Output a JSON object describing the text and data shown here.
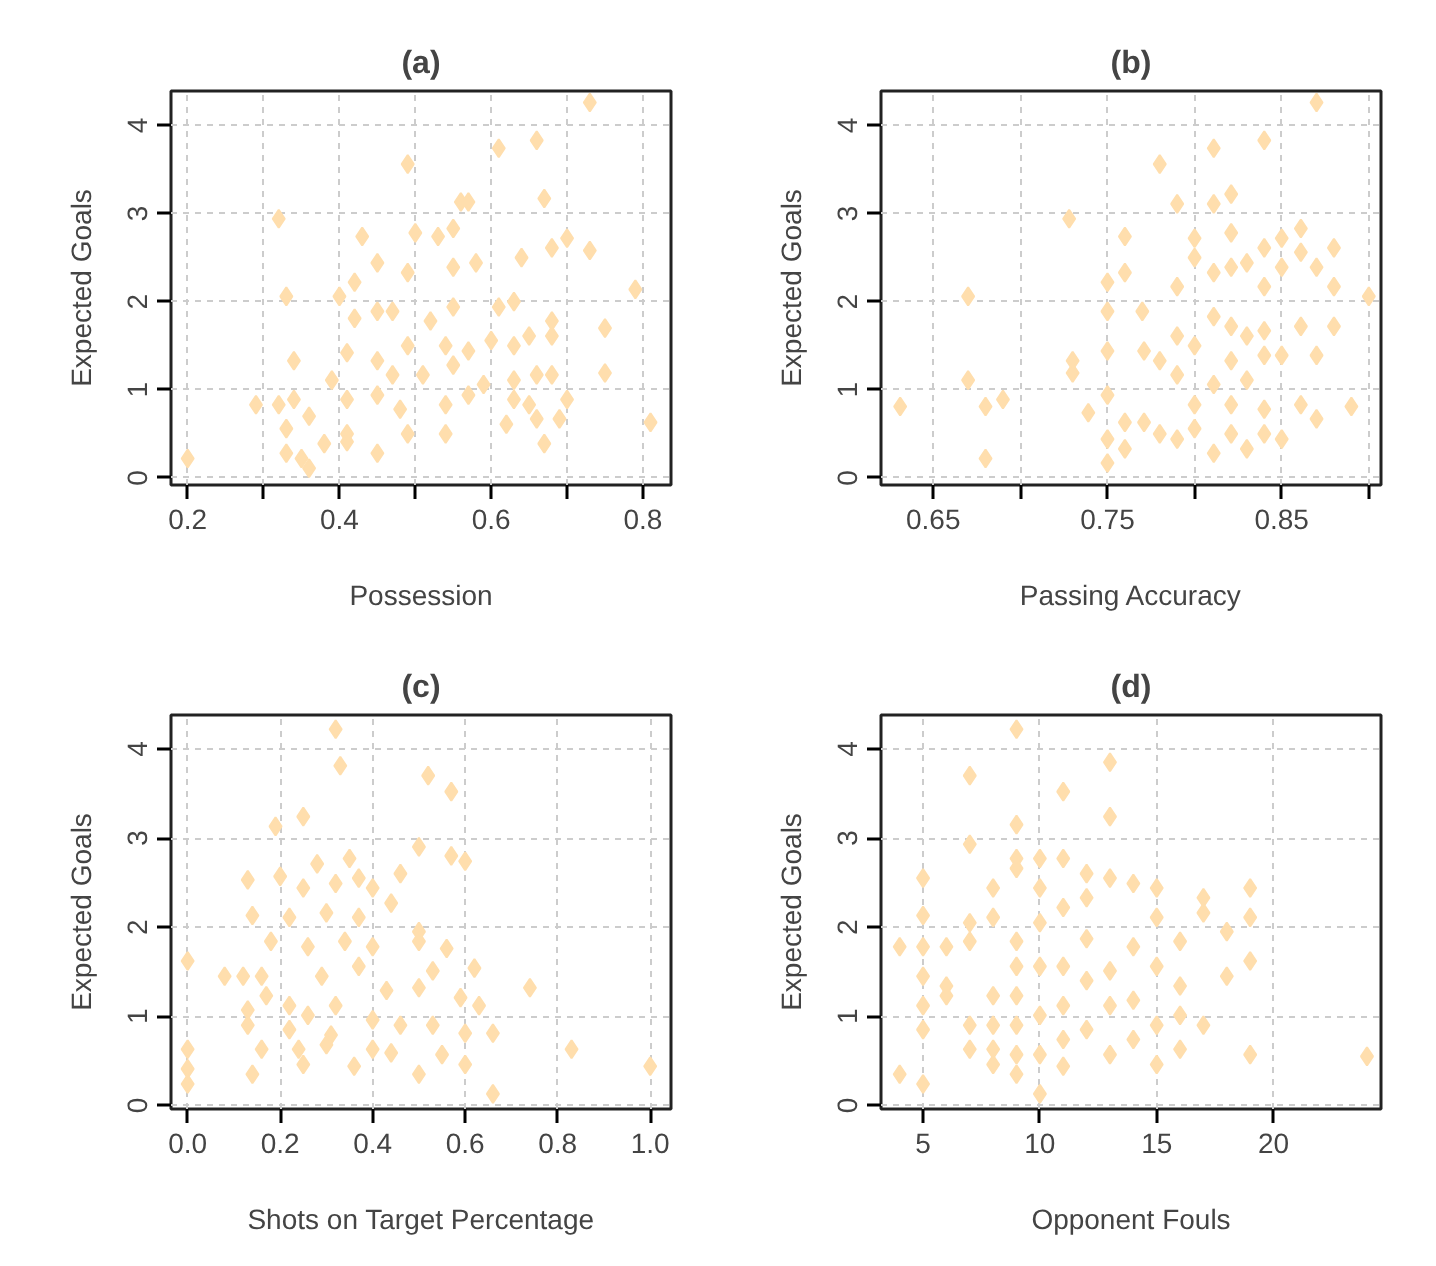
{
  "chart_data": [
    {
      "type": "scatter",
      "title": "(a)",
      "xlabel": "Possession",
      "ylabel": "Expected Goals",
      "marker": "diamond",
      "grid": true,
      "xlim": [
        0.178,
        0.837
      ],
      "ylim": [
        -0.08,
        4.39
      ],
      "xticks": [
        0.2,
        0.4,
        0.6,
        0.8,
        {
          "value": 0.3,
          "label": null
        },
        {
          "value": 0.5,
          "label": null
        },
        {
          "value": 0.7,
          "label": null
        }
      ],
      "yticks": [
        0,
        1,
        2,
        3,
        4
      ],
      "series": [
        {
          "color": "#ffdead",
          "x": [
            0.2,
            0.73,
            0.61,
            0.66,
            0.49,
            0.67,
            0.32,
            0.56,
            0.57,
            0.43,
            0.5,
            0.53,
            0.55,
            0.7,
            0.73,
            0.68,
            0.64,
            0.45,
            0.49,
            0.55,
            0.58,
            0.79,
            0.33,
            0.4,
            0.42,
            0.45,
            0.47,
            0.42,
            0.52,
            0.55,
            0.61,
            0.63,
            0.68,
            0.75,
            0.49,
            0.41,
            0.54,
            0.57,
            0.6,
            0.63,
            0.65,
            0.68,
            0.34,
            0.39,
            0.45,
            0.47,
            0.51,
            0.55,
            0.59,
            0.63,
            0.66,
            0.68,
            0.75,
            0.29,
            0.32,
            0.34,
            0.36,
            0.41,
            0.45,
            0.48,
            0.54,
            0.57,
            0.63,
            0.65,
            0.7,
            0.33,
            0.41,
            0.49,
            0.54,
            0.62,
            0.66,
            0.69,
            0.81,
            0.33,
            0.35,
            0.38,
            0.41,
            0.45,
            0.36,
            0.67
          ],
          "values": [
            0.22,
            4.26,
            3.74,
            3.83,
            3.56,
            3.17,
            2.94,
            3.13,
            3.13,
            2.74,
            2.78,
            2.74,
            2.83,
            2.72,
            2.58,
            2.61,
            2.5,
            2.44,
            2.33,
            2.39,
            2.44,
            2.14,
            2.06,
            2.06,
            2.22,
            1.89,
            1.89,
            1.81,
            1.78,
            1.94,
            1.94,
            2.0,
            1.78,
            1.7,
            1.5,
            1.42,
            1.5,
            1.44,
            1.56,
            1.5,
            1.61,
            1.61,
            1.33,
            1.11,
            1.33,
            1.17,
            1.17,
            1.28,
            1.06,
            1.11,
            1.17,
            1.17,
            1.19,
            0.83,
            0.83,
            0.89,
            0.7,
            0.89,
            0.94,
            0.78,
            0.83,
            0.94,
            0.89,
            0.83,
            0.89,
            0.56,
            0.5,
            0.5,
            0.5,
            0.61,
            0.67,
            0.67,
            0.63,
            0.28,
            0.22,
            0.39,
            0.41,
            0.28,
            0.11,
            0.39
          ]
        }
      ]
    },
    {
      "type": "scatter",
      "title": "(b)",
      "xlabel": "Passing Accuracy",
      "ylabel": "Expected Goals",
      "marker": "diamond",
      "grid": true,
      "xlim": [
        0.62,
        0.907
      ],
      "ylim": [
        -0.08,
        4.39
      ],
      "xticks": [
        0.65,
        {
          "value": 0.7,
          "label": null
        },
        0.75,
        {
          "value": 0.8,
          "label": null
        },
        0.85,
        {
          "value": 0.9,
          "label": null
        }
      ],
      "yticks": [
        0,
        1,
        2,
        3,
        4
      ],
      "series": [
        {
          "color": "#ffdead",
          "x": [
            0.631,
            0.67,
            0.67,
            0.68,
            0.69,
            0.68,
            0.728,
            0.76,
            0.76,
            0.75,
            0.75,
            0.73,
            0.73,
            0.739,
            0.75,
            0.75,
            0.75,
            0.75,
            0.76,
            0.76,
            0.771,
            0.77,
            0.771,
            0.78,
            0.78,
            0.78,
            0.79,
            0.79,
            0.79,
            0.79,
            0.79,
            0.8,
            0.8,
            0.8,
            0.8,
            0.8,
            0.811,
            0.811,
            0.811,
            0.811,
            0.811,
            0.811,
            0.821,
            0.821,
            0.821,
            0.821,
            0.821,
            0.821,
            0.821,
            0.83,
            0.83,
            0.83,
            0.83,
            0.84,
            0.84,
            0.84,
            0.84,
            0.84,
            0.84,
            0.84,
            0.85,
            0.85,
            0.85,
            0.85,
            0.861,
            0.861,
            0.861,
            0.861,
            0.87,
            0.87,
            0.87,
            0.87,
            0.88,
            0.88,
            0.88,
            0.89,
            0.9
          ],
          "values": [
            0.81,
            2.06,
            1.11,
            0.81,
            0.89,
            0.22,
            2.94,
            2.74,
            2.33,
            2.22,
            1.89,
            1.33,
            1.19,
            0.74,
            1.44,
            0.94,
            0.44,
            0.17,
            0.63,
            0.33,
            0.63,
            1.89,
            1.44,
            3.56,
            1.33,
            0.5,
            3.11,
            2.17,
            1.61,
            1.17,
            0.44,
            2.72,
            2.5,
            1.5,
            0.83,
            0.56,
            3.74,
            3.11,
            2.33,
            1.83,
            1.06,
            0.28,
            3.22,
            2.78,
            2.39,
            1.72,
            1.33,
            0.83,
            0.5,
            2.44,
            1.61,
            1.11,
            0.33,
            3.83,
            2.61,
            2.17,
            1.67,
            1.39,
            0.78,
            0.5,
            2.72,
            2.39,
            1.39,
            0.44,
            2.83,
            2.56,
            1.72,
            0.83,
            4.26,
            2.39,
            1.39,
            0.67,
            2.61,
            2.17,
            1.72,
            0.81,
            2.06
          ]
        }
      ]
    },
    {
      "type": "scatter",
      "title": "(c)",
      "xlabel": "Shots on Target Percentage",
      "ylabel": "Expected Goals",
      "marker": "diamond",
      "grid": true,
      "xlim": [
        -0.036,
        1.045
      ],
      "ylim": [
        -0.04,
        4.38
      ],
      "xticks": [
        {
          "value": 0,
          "label": "0.0"
        },
        0.2,
        0.4,
        0.6,
        0.8,
        {
          "value": 1,
          "label": "1.0"
        }
      ],
      "yticks": [
        0,
        1,
        2,
        3,
        4
      ],
      "series": [
        {
          "color": "#ffdead",
          "x": [
            0.32,
            0.33,
            0.52,
            0.57,
            0.25,
            0.19,
            0.5,
            0.57,
            0.6,
            0.28,
            0.35,
            0.2,
            0.13,
            0.25,
            0.32,
            0.37,
            0.4,
            0.46,
            0.14,
            0.22,
            0.3,
            0.37,
            0.44,
            0.5,
            0.18,
            0.26,
            0.34,
            0.4,
            0.5,
            0,
            0.08,
            0.12,
            0.16,
            0.29,
            0.37,
            0.56,
            0.62,
            0.53,
            0.5,
            0.43,
            0.59,
            0.63,
            0.74,
            0.13,
            0.17,
            0.22,
            0.26,
            0.32,
            0.4,
            0.13,
            0.22,
            0.31,
            0.46,
            0.53,
            0.6,
            0.66,
            0.16,
            0.24,
            0.3,
            0.4,
            0.44,
            0.55,
            0.83,
            0,
            0,
            0,
            0.14,
            0.25,
            0.36,
            0.5,
            0.6,
            0.66,
            1.0
          ],
          "values": [
            4.22,
            3.81,
            3.7,
            3.52,
            3.24,
            3.13,
            2.9,
            2.8,
            2.74,
            2.71,
            2.77,
            2.57,
            2.53,
            2.44,
            2.49,
            2.55,
            2.44,
            2.6,
            2.13,
            2.11,
            2.16,
            2.11,
            2.27,
            1.95,
            1.84,
            1.78,
            1.84,
            1.78,
            1.84,
            1.62,
            1.45,
            1.45,
            1.45,
            1.45,
            1.56,
            1.76,
            1.54,
            1.51,
            1.32,
            1.29,
            1.21,
            1.12,
            1.32,
            1.07,
            1.23,
            1.12,
            1.01,
            1.12,
            0.96,
            0.9,
            0.85,
            0.79,
            0.9,
            0.9,
            0.81,
            0.81,
            0.63,
            0.63,
            0.68,
            0.63,
            0.59,
            0.57,
            0.63,
            0.63,
            0.41,
            0.24,
            0.35,
            0.46,
            0.44,
            0.35,
            0.46,
            0.13,
            0.44
          ]
        }
      ]
    },
    {
      "type": "scatter",
      "title": "(d)",
      "xlabel": "Opponent Fouls",
      "ylabel": "Expected Goals",
      "marker": "diamond",
      "grid": true,
      "xlim": [
        3.2,
        24.6
      ],
      "ylim": [
        -0.04,
        4.38
      ],
      "xticks": [
        5,
        10,
        15,
        20
      ],
      "yticks": [
        0,
        1,
        2,
        3,
        4
      ],
      "series": [
        {
          "color": "#ffdead",
          "x": [
            4,
            4,
            5,
            5,
            5,
            5,
            5,
            5,
            5,
            6,
            6,
            6,
            7,
            7,
            7,
            7,
            7,
            7,
            8,
            8,
            8,
            8,
            8,
            8,
            9,
            9,
            9,
            9,
            9,
            9,
            9,
            9,
            9,
            9,
            10,
            10,
            10,
            10,
            10,
            10,
            10,
            11,
            11,
            11,
            11,
            11,
            11,
            11,
            12,
            12,
            12,
            12,
            12,
            13,
            13,
            13,
            13,
            13,
            13,
            14,
            14,
            14,
            14,
            15,
            15,
            15,
            15,
            15,
            16,
            16,
            16,
            16,
            17,
            17,
            17,
            18,
            18,
            19,
            19,
            19,
            19,
            24
          ],
          "values": [
            1.78,
            0.35,
            2.55,
            2.13,
            1.78,
            1.45,
            1.12,
            0.85,
            0.24,
            1.78,
            1.34,
            1.23,
            3.7,
            2.93,
            2.05,
            1.84,
            0.9,
            0.63,
            2.44,
            2.11,
            1.23,
            0.9,
            0.63,
            0.46,
            4.22,
            3.15,
            2.77,
            2.66,
            1.84,
            1.56,
            1.23,
            0.9,
            0.57,
            0.35,
            2.77,
            2.44,
            2.05,
            1.56,
            1.01,
            0.57,
            0.13,
            3.52,
            2.77,
            2.22,
            1.56,
            1.12,
            0.74,
            0.44,
            2.6,
            2.33,
            1.87,
            1.4,
            0.85,
            3.85,
            3.24,
            2.55,
            1.51,
            1.12,
            0.57,
            2.49,
            1.78,
            1.18,
            0.74,
            2.44,
            2.11,
            1.56,
            0.9,
            0.46,
            1.84,
            1.34,
            1.01,
            0.63,
            2.33,
            2.16,
            0.9,
            1.95,
            1.45,
            2.44,
            2.11,
            1.62,
            0.57,
            0.55
          ]
        }
      ]
    }
  ]
}
